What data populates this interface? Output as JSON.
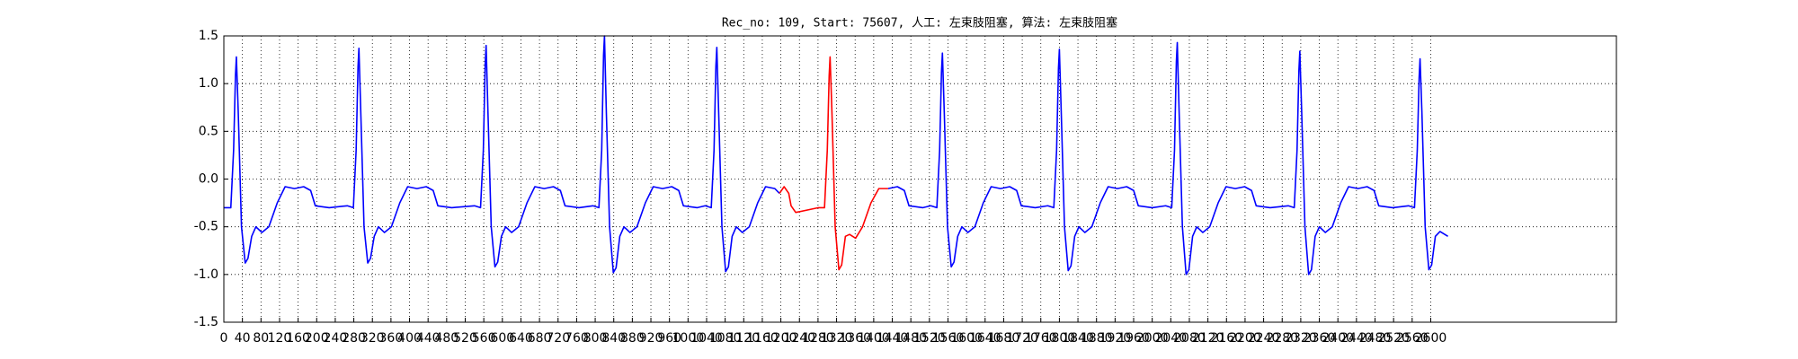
{
  "chart_data": {
    "type": "line",
    "title": "Rec_no: 109, Start: 75607, 人工: 左束肢阻塞, 算法: 左束肢阻塞",
    "xlim": [
      0,
      3000
    ],
    "xticks": [
      0,
      40,
      80,
      120,
      160,
      200,
      240,
      280,
      320,
      360,
      400,
      440,
      480,
      520,
      560,
      600,
      640,
      680,
      720,
      760,
      800,
      840,
      880,
      920,
      960,
      1000,
      1040,
      1080,
      1120,
      1160,
      1200,
      1240,
      1280,
      1320,
      1360,
      1400,
      1440,
      1480,
      1520,
      1560,
      1600,
      1640,
      1680,
      1720,
      1760,
      1800,
      1840,
      1880,
      1920,
      1960,
      2000,
      2040,
      2080,
      2120,
      2160,
      2200,
      2240,
      2280,
      2320,
      2360,
      2400,
      2440,
      2480,
      2520,
      2560,
      2600
    ],
    "ylim": [
      -1.5,
      1.5
    ],
    "yticks": [
      -1.5,
      {
        "value": -1,
        "label": "-1.0"
      },
      -0.5,
      {
        "value": 0,
        "label": "0.0"
      },
      0.5,
      {
        "value": 1,
        "label": "1.0"
      },
      1.5
    ],
    "grid": true,
    "series": [
      {
        "color": "#0000ff",
        "x": [
          0,
          15,
          21,
          25,
          27,
          31,
          38,
          46,
          52,
          60,
          69,
          82,
          97,
          115,
          132,
          152,
          172,
          187,
          197,
          227,
          266,
          279,
          285,
          289,
          291,
          295,
          302,
          310,
          316,
          324,
          333,
          346,
          361,
          379,
          396,
          416,
          436,
          451,
          461,
          491,
          540,
          553,
          559,
          563,
          565,
          569,
          576,
          584,
          590,
          598,
          607,
          620,
          635,
          653,
          670,
          690,
          710,
          725,
          735,
          765,
          795,
          808,
          814,
          818,
          820,
          824,
          831,
          839,
          845,
          853,
          862,
          875,
          890,
          908,
          925,
          945,
          965,
          980,
          990,
          1020,
          1037,
          1050,
          1056,
          1060,
          1062,
          1066,
          1073,
          1081,
          1087,
          1095,
          1104,
          1117,
          1132,
          1150,
          1167,
          1187,
          1197,
          1300,
          1431,
          1451,
          1466,
          1476,
          1506,
          1523,
          1536,
          1542,
          1546,
          1548,
          1552,
          1559,
          1567,
          1573,
          1581,
          1590,
          1603,
          1618,
          1636,
          1653,
          1673,
          1693,
          1708,
          1718,
          1748,
          1775,
          1788,
          1794,
          1798,
          1800,
          1804,
          1811,
          1819,
          1825,
          1833,
          1842,
          1855,
          1870,
          1888,
          1905,
          1925,
          1945,
          1960,
          1970,
          2000,
          2029,
          2042,
          2048,
          2052,
          2054,
          2058,
          2065,
          2073,
          2079,
          2087,
          2096,
          2109,
          2124,
          2142,
          2159,
          2179,
          2199,
          2214,
          2224,
          2254,
          2293,
          2306,
          2312,
          2316,
          2318,
          2322,
          2329,
          2337,
          2343,
          2351,
          2360,
          2373,
          2388,
          2406,
          2423,
          2443,
          2463,
          2478,
          2488,
          2518,
          2552,
          2565,
          2571,
          2575,
          2577,
          2581,
          2588,
          2596,
          2602,
          2610,
          2620,
          2637
        ],
        "values": [
          -0.3,
          -0.3,
          0.3,
          1.08,
          1.28,
          0.7,
          -0.5,
          -0.88,
          -0.83,
          -0.6,
          -0.5,
          -0.56,
          -0.5,
          -0.25,
          -0.08,
          -0.1,
          -0.08,
          -0.12,
          -0.28,
          -0.3,
          -0.28,
          -0.3,
          0.3,
          1.17,
          1.37,
          0.7,
          -0.5,
          -0.88,
          -0.83,
          -0.6,
          -0.5,
          -0.56,
          -0.5,
          -0.25,
          -0.08,
          -0.1,
          -0.08,
          -0.12,
          -0.28,
          -0.3,
          -0.28,
          -0.3,
          0.3,
          1.2,
          1.4,
          0.7,
          -0.5,
          -0.92,
          -0.87,
          -0.6,
          -0.5,
          -0.56,
          -0.5,
          -0.25,
          -0.08,
          -0.1,
          -0.08,
          -0.12,
          -0.28,
          -0.3,
          -0.28,
          -0.3,
          0.3,
          1.3,
          1.5,
          0.7,
          -0.5,
          -0.98,
          -0.93,
          -0.6,
          -0.5,
          -0.56,
          -0.5,
          -0.25,
          -0.08,
          -0.1,
          -0.08,
          -0.12,
          -0.28,
          -0.3,
          -0.28,
          -0.3,
          0.3,
          1.18,
          1.38,
          0.7,
          -0.5,
          -0.97,
          -0.92,
          -0.6,
          -0.5,
          -0.56,
          -0.5,
          -0.25,
          -0.08,
          -0.1,
          -0.15,
          null,
          -0.1,
          -0.08,
          -0.12,
          -0.28,
          -0.3,
          -0.28,
          -0.3,
          0.3,
          1.12,
          1.32,
          0.7,
          -0.5,
          -0.92,
          -0.87,
          -0.6,
          -0.5,
          -0.56,
          -0.5,
          -0.25,
          -0.08,
          -0.1,
          -0.08,
          -0.12,
          -0.28,
          -0.3,
          -0.28,
          -0.3,
          0.3,
          1.16,
          1.36,
          0.7,
          -0.5,
          -0.96,
          -0.91,
          -0.6,
          -0.5,
          -0.56,
          -0.5,
          -0.25,
          -0.08,
          -0.1,
          -0.08,
          -0.12,
          -0.28,
          -0.3,
          -0.28,
          -0.3,
          0.3,
          1.23,
          1.43,
          0.7,
          -0.5,
          -1.0,
          -0.95,
          -0.6,
          -0.5,
          -0.56,
          -0.5,
          -0.25,
          -0.08,
          -0.1,
          -0.08,
          -0.12,
          -0.28,
          -0.3,
          -0.28,
          -0.3,
          0.3,
          1.14,
          1.34,
          0.7,
          -0.5,
          -1.0,
          -0.95,
          -0.6,
          -0.5,
          -0.56,
          -0.5,
          -0.25,
          -0.08,
          -0.1,
          -0.08,
          -0.12,
          -0.28,
          -0.3,
          -0.28,
          -0.3,
          0.3,
          1.06,
          1.26,
          0.7,
          -0.5,
          -0.95,
          -0.9,
          -0.6,
          -0.55,
          -0.6
        ]
      },
      {
        "color": "#ff0000",
        "x": [
          1197,
          1207,
          1217,
          1222,
          1232,
          1281,
          1294,
          1300,
          1304,
          1306,
          1310,
          1317,
          1325,
          1331,
          1339,
          1348,
          1361,
          1376,
          1394,
          1411,
          1431
        ],
        "values": [
          -0.15,
          -0.08,
          -0.15,
          -0.28,
          -0.35,
          -0.3,
          -0.3,
          0.3,
          1.08,
          1.28,
          0.7,
          -0.5,
          -0.95,
          -0.9,
          -0.6,
          -0.58,
          -0.62,
          -0.5,
          -0.25,
          -0.1,
          -0.1
        ]
      }
    ]
  }
}
